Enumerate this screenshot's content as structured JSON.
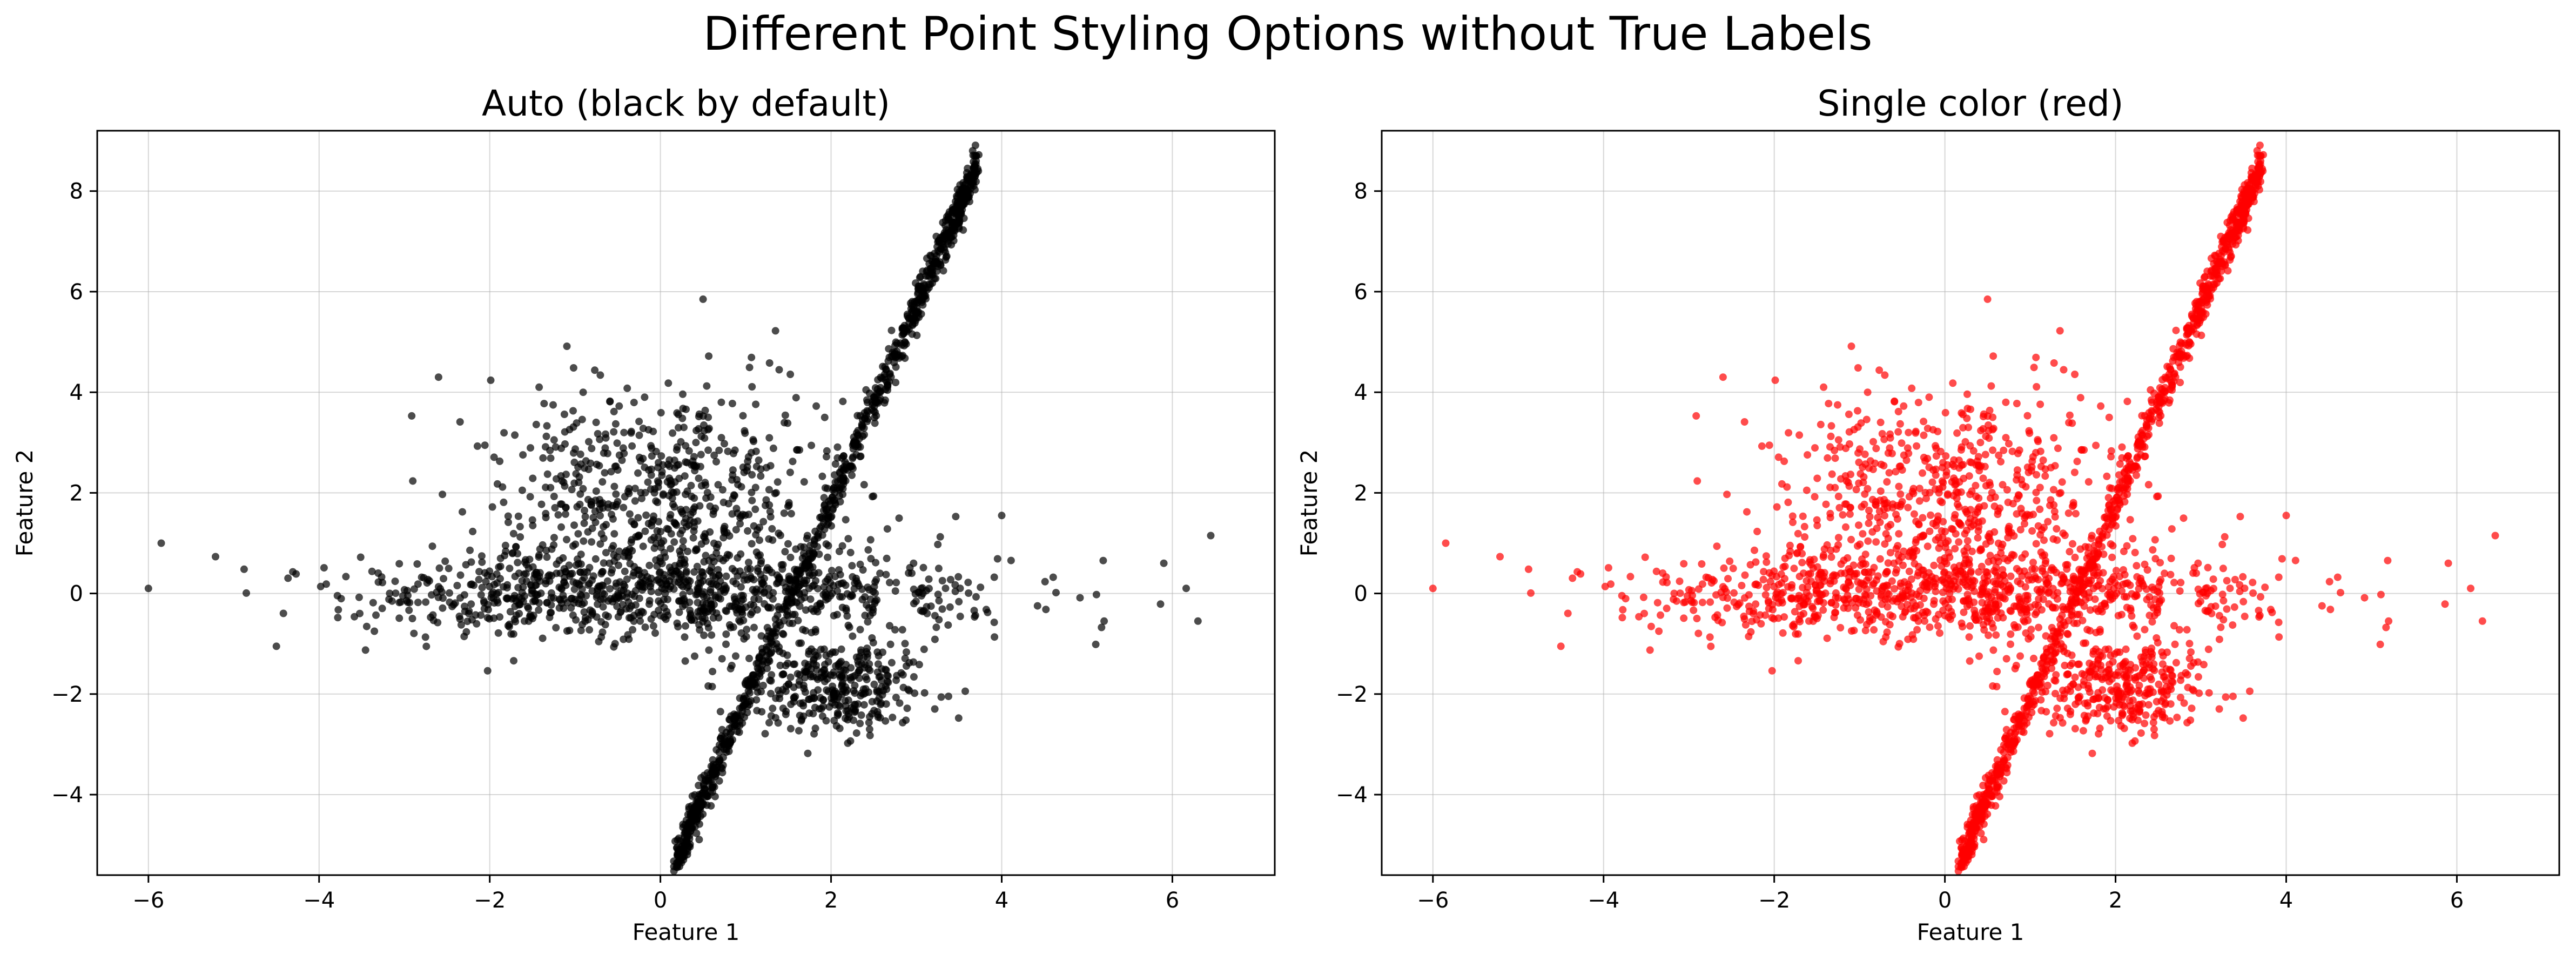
{
  "figure": {
    "title": "Different Point Styling Options without True Labels"
  },
  "chart_data": [
    {
      "type": "scatter",
      "title": "Auto (black by default)",
      "xlabel": "Feature 1",
      "ylabel": "Feature 2",
      "xlim": [
        -6.6,
        7.2
      ],
      "ylim": [
        -5.6,
        9.2
      ],
      "xticks": [
        -6,
        -4,
        -2,
        0,
        2,
        4,
        6
      ],
      "yticks": [
        -4,
        -2,
        0,
        2,
        4,
        6,
        8
      ],
      "grid": true,
      "point_color": "#000000",
      "point_alpha": 0.7,
      "clusters": [
        {
          "name": "line",
          "x_range": [
            0.2,
            3.7
          ],
          "slope": 3.9,
          "count": 1000
        },
        {
          "name": "upper",
          "center": [
            0.0,
            2.0
          ],
          "spread": [
            1.0,
            1.1
          ],
          "count": 600
        },
        {
          "name": "horizontal",
          "center": [
            0.0,
            0.0
          ],
          "spread": [
            1.9,
            0.45
          ],
          "count": 900
        },
        {
          "name": "lower",
          "center": [
            2.1,
            -1.9
          ],
          "spread": [
            0.5,
            0.45
          ],
          "count": 320
        }
      ],
      "outliers": [
        {
          "x": 6.45,
          "y": 1.15
        },
        {
          "x": -5.85,
          "y": 1.0
        },
        {
          "x": -6.0,
          "y": 0.1
        },
        {
          "x": 5.9,
          "y": 0.6
        },
        {
          "x": 6.3,
          "y": -0.55
        },
        {
          "x": 5.2,
          "y": -0.55
        },
        {
          "x": 0.5,
          "y": 5.85
        },
        {
          "x": 4.0,
          "y": 1.55
        },
        {
          "x": -4.5,
          "y": -1.05
        },
        {
          "x": -2.6,
          "y": 4.3
        },
        {
          "x": 3.7,
          "y": 8.6
        },
        {
          "x": 0.2,
          "y": -4.9
        }
      ]
    },
    {
      "type": "scatter",
      "title": "Single color (red)",
      "xlabel": "Feature 1",
      "ylabel": "Feature 2",
      "xlim": [
        -6.6,
        7.2
      ],
      "ylim": [
        -5.6,
        9.2
      ],
      "xticks": [
        -6,
        -4,
        -2,
        0,
        2,
        4,
        6
      ],
      "yticks": [
        -4,
        -2,
        0,
        2,
        4,
        6,
        8
      ],
      "grid": true,
      "point_color": "#ff0000",
      "point_alpha": 0.7,
      "clusters": [
        {
          "name": "line",
          "x_range": [
            0.2,
            3.7
          ],
          "slope": 3.9,
          "count": 1000
        },
        {
          "name": "upper",
          "center": [
            0.0,
            2.0
          ],
          "spread": [
            1.0,
            1.1
          ],
          "count": 600
        },
        {
          "name": "horizontal",
          "center": [
            0.0,
            0.0
          ],
          "spread": [
            1.9,
            0.45
          ],
          "count": 900
        },
        {
          "name": "lower",
          "center": [
            2.1,
            -1.9
          ],
          "spread": [
            0.5,
            0.45
          ],
          "count": 320
        }
      ],
      "outliers": [
        {
          "x": 6.45,
          "y": 1.15
        },
        {
          "x": -5.85,
          "y": 1.0
        },
        {
          "x": -6.0,
          "y": 0.1
        },
        {
          "x": 5.9,
          "y": 0.6
        },
        {
          "x": 6.3,
          "y": -0.55
        },
        {
          "x": 5.2,
          "y": -0.55
        },
        {
          "x": 0.5,
          "y": 5.85
        },
        {
          "x": 4.0,
          "y": 1.55
        },
        {
          "x": -4.5,
          "y": -1.05
        },
        {
          "x": -2.6,
          "y": 4.3
        },
        {
          "x": 3.7,
          "y": 8.6
        },
        {
          "x": 0.2,
          "y": -4.9
        }
      ]
    }
  ]
}
